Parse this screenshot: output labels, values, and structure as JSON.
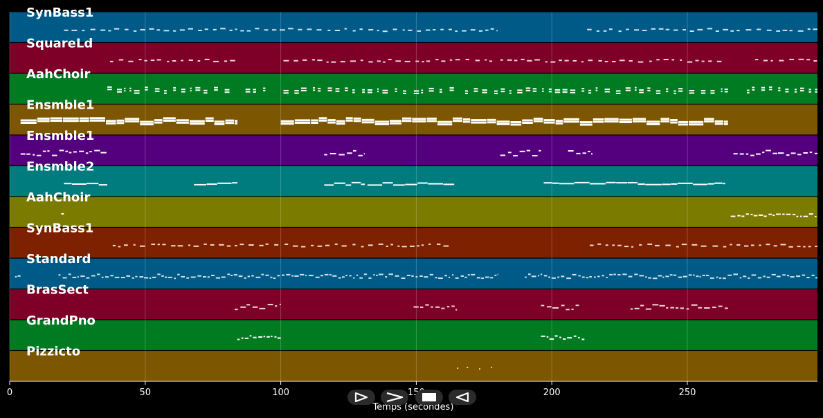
{
  "chart_data": {
    "type": "piano-roll",
    "xlabel": "Temps (secondes)",
    "xlim": [
      0,
      298
    ],
    "xticks": [
      0,
      50,
      100,
      150,
      200,
      250
    ],
    "grid": true,
    "tracks": [
      {
        "name": "SynBass1",
        "color": "#005a87",
        "note_color": "#d0e4ee",
        "style": "dash",
        "spans": [
          [
            20,
            180
          ],
          [
            213,
            298
          ]
        ]
      },
      {
        "name": "SquareLd",
        "color": "#7e0028",
        "note_color": "#f0d8e0",
        "style": "dash",
        "spans": [
          [
            37,
            84
          ],
          [
            101,
            165
          ],
          [
            165,
            178
          ],
          [
            181,
            264
          ],
          [
            275,
            298
          ]
        ]
      },
      {
        "name": "AahChoir",
        "color": "#007b22",
        "note_color": "#ffffff",
        "style": "stack",
        "spans": [
          [
            36,
            82
          ],
          [
            87,
            96
          ],
          [
            101,
            164
          ],
          [
            168,
            265
          ],
          [
            272,
            298
          ]
        ]
      },
      {
        "name": "Ensmble1",
        "color": "#7c5600",
        "note_color": "#ffffff",
        "style": "thick",
        "spans": [
          [
            4,
            84
          ],
          [
            100,
            265
          ]
        ]
      },
      {
        "name": "Ensmble1",
        "color": "#54007e",
        "note_color": "#ffffff",
        "style": "cluster",
        "spans": [
          [
            4,
            36
          ],
          [
            116,
            131
          ],
          [
            181,
            196
          ],
          [
            206,
            215
          ],
          [
            267,
            298
          ]
        ]
      },
      {
        "name": "Ensmble2",
        "color": "#007b7e",
        "note_color": "#ffffff",
        "style": "line",
        "spans": [
          [
            20,
            36
          ],
          [
            68,
            84
          ],
          [
            116,
            131
          ],
          [
            132,
            164
          ],
          [
            197,
            264
          ]
        ]
      },
      {
        "name": "AahChoir",
        "color": "#7b7b00",
        "note_color": "#ffffff",
        "style": "busy",
        "spans": [
          [
            19,
            20
          ],
          [
            266,
            298
          ]
        ]
      },
      {
        "name": "SynBass1",
        "color": "#7e2100",
        "note_color": "#f0dcd4",
        "style": "dash",
        "spans": [
          [
            38,
            164
          ],
          [
            214,
            298
          ]
        ]
      },
      {
        "name": "Standard",
        "color": "#005a87",
        "note_color": "#d0e4ee",
        "style": "busy",
        "spans": [
          [
            2,
            4
          ],
          [
            18,
            180
          ],
          [
            190,
            298
          ]
        ]
      },
      {
        "name": "BrasSect",
        "color": "#7e0028",
        "note_color": "#f0d8e0",
        "style": "cluster",
        "spans": [
          [
            83,
            100
          ],
          [
            149,
            165
          ],
          [
            196,
            210
          ],
          [
            229,
            265
          ]
        ]
      },
      {
        "name": "GrandPno",
        "color": "#007b22",
        "note_color": "#ffffff",
        "style": "busy",
        "spans": [
          [
            84,
            100
          ],
          [
            196,
            212
          ]
        ]
      },
      {
        "name": "Pizzicto",
        "color": "#7c5600",
        "note_color": "#e6d8b4",
        "style": "sparse",
        "spans": [
          [
            165,
            178
          ]
        ]
      }
    ]
  },
  "controls": [
    {
      "name": "play-icon",
      "symbol": "play-outline"
    },
    {
      "name": "forward-icon",
      "symbol": "chevron-right"
    },
    {
      "name": "stop-icon",
      "symbol": "square"
    },
    {
      "name": "back-icon",
      "symbol": "play-left"
    }
  ]
}
